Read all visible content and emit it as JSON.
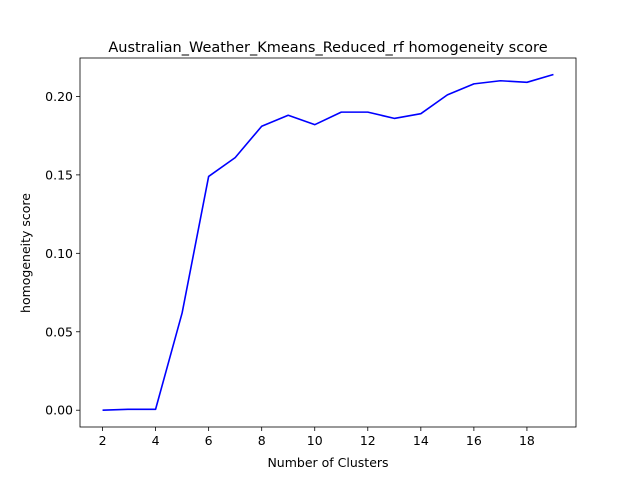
{
  "chart_data": {
    "type": "line",
    "title": "Australian_Weather_Kmeans_Reduced_rf homogeneity score",
    "xlabel": "Number of Clusters",
    "ylabel": "homogeneity score",
    "xlim": [
      1.15,
      19.85
    ],
    "ylim": [
      -0.0107,
      0.2245
    ],
    "xticks": [
      2,
      4,
      6,
      8,
      10,
      12,
      14,
      16,
      18
    ],
    "xtick_labels": [
      "2",
      "4",
      "6",
      "8",
      "10",
      "12",
      "14",
      "16",
      "18"
    ],
    "yticks": [
      0.0,
      0.05,
      0.1,
      0.15,
      0.2
    ],
    "ytick_labels": [
      "0.00",
      "0.05",
      "0.10",
      "0.15",
      "0.20"
    ],
    "grid": false,
    "series": [
      {
        "color": "#0000ff",
        "x": [
          2,
          3,
          4,
          5,
          6,
          7,
          8,
          9,
          10,
          11,
          12,
          13,
          14,
          15,
          16,
          17,
          18,
          19
        ],
        "y": [
          0.0,
          0.0006,
          0.0006,
          0.062,
          0.149,
          0.161,
          0.181,
          0.188,
          0.182,
          0.19,
          0.19,
          0.186,
          0.189,
          0.201,
          0.208,
          0.21,
          0.209,
          0.214
        ]
      }
    ]
  }
}
